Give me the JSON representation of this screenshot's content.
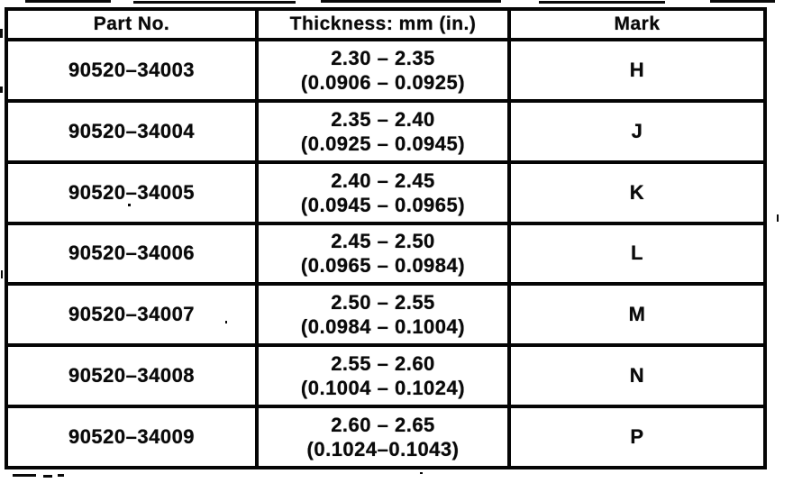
{
  "table": {
    "headers": [
      "Part No.",
      "Thickness: mm (in.)",
      "Mark"
    ],
    "rows": [
      {
        "part": "90520–34003",
        "thickness_mm": "2.30 – 2.35",
        "thickness_in": "(0.0906 – 0.0925)",
        "mark": "H"
      },
      {
        "part": "90520–34004",
        "thickness_mm": "2.35 – 2.40",
        "thickness_in": "(0.0925 – 0.0945)",
        "mark": "J"
      },
      {
        "part": "90520–34005",
        "thickness_mm": "2.40 – 2.45",
        "thickness_in": "(0.0945 – 0.0965)",
        "mark": "K"
      },
      {
        "part": "90520–34006",
        "thickness_mm": "2.45 – 2.50",
        "thickness_in": "(0.0965 – 0.0984)",
        "mark": "L"
      },
      {
        "part": "90520–34007",
        "thickness_mm": "2.50 – 2.55",
        "thickness_in": "(0.0984 – 0.1004)",
        "mark": "M"
      },
      {
        "part": "90520–34008",
        "thickness_mm": "2.55 – 2.60",
        "thickness_in": "(0.1004 – 0.1024)",
        "mark": "N"
      },
      {
        "part": "90520–34009",
        "thickness_mm": "2.60 – 2.65",
        "thickness_in": "(0.1024–0.1043)",
        "mark": "P"
      }
    ],
    "ink_color": "#050505",
    "paper_color": "#ffffff"
  }
}
